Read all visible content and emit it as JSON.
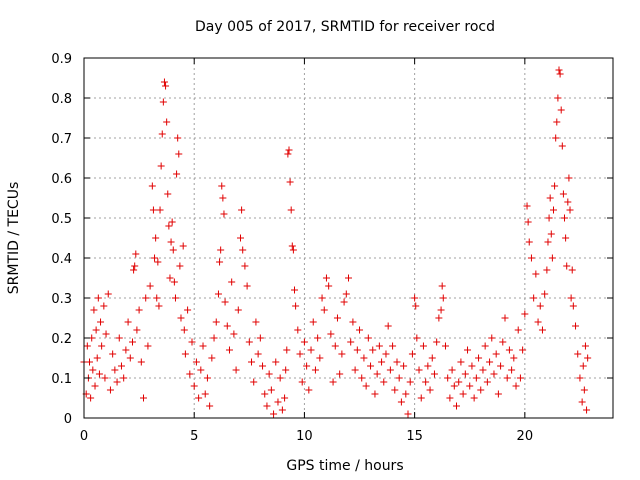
{
  "chart_data": {
    "type": "scatter",
    "title": "Day 005 of 2017, SRMTID for receiver rocd",
    "xlabel": "GPS time / hours",
    "ylabel": "SRMTID / TECUs",
    "xlim": [
      0,
      24
    ],
    "ylim": [
      0,
      0.9
    ],
    "xticks": [
      0,
      5,
      10,
      15,
      20
    ],
    "xtick_labels": [
      "0",
      "5",
      "10",
      "15",
      "20"
    ],
    "yticks": [
      0,
      0.1,
      0.2,
      0.3,
      0.4,
      0.5,
      0.6,
      0.7,
      0.8,
      0.9
    ],
    "ytick_labels": [
      "0",
      "0.1",
      "0.2",
      "0.3",
      "0.4",
      "0.5",
      "0.6",
      "0.7",
      "0.8",
      "0.9"
    ],
    "grid": true,
    "marker": "+",
    "color": "#e00000",
    "series": [
      {
        "name": "SRMTID",
        "points": [
          [
            0.0,
            0.14
          ],
          [
            0.1,
            0.06
          ],
          [
            0.15,
            0.18
          ],
          [
            0.2,
            0.1
          ],
          [
            0.25,
            0.14
          ],
          [
            0.3,
            0.05
          ],
          [
            0.35,
            0.2
          ],
          [
            0.4,
            0.12
          ],
          [
            0.45,
            0.27
          ],
          [
            0.5,
            0.08
          ],
          [
            0.55,
            0.22
          ],
          [
            0.6,
            0.15
          ],
          [
            0.65,
            0.3
          ],
          [
            0.7,
            0.11
          ],
          [
            0.75,
            0.24
          ],
          [
            0.8,
            0.18
          ],
          [
            0.9,
            0.28
          ],
          [
            0.95,
            0.1
          ],
          [
            1.0,
            0.21
          ],
          [
            1.1,
            0.31
          ],
          [
            1.2,
            0.07
          ],
          [
            1.3,
            0.16
          ],
          [
            1.4,
            0.12
          ],
          [
            1.5,
            0.09
          ],
          [
            1.6,
            0.2
          ],
          [
            1.7,
            0.13
          ],
          [
            1.8,
            0.1
          ],
          [
            1.9,
            0.17
          ],
          [
            2.0,
            0.24
          ],
          [
            2.1,
            0.15
          ],
          [
            2.2,
            0.19
          ],
          [
            2.25,
            0.37
          ],
          [
            2.3,
            0.38
          ],
          [
            2.35,
            0.41
          ],
          [
            2.4,
            0.22
          ],
          [
            2.5,
            0.27
          ],
          [
            2.6,
            0.14
          ],
          [
            2.7,
            0.05
          ],
          [
            2.8,
            0.3
          ],
          [
            2.9,
            0.18
          ],
          [
            3.0,
            0.33
          ],
          [
            3.1,
            0.58
          ],
          [
            3.15,
            0.52
          ],
          [
            3.2,
            0.4
          ],
          [
            3.25,
            0.45
          ],
          [
            3.3,
            0.3
          ],
          [
            3.35,
            0.39
          ],
          [
            3.4,
            0.28
          ],
          [
            3.45,
            0.52
          ],
          [
            3.5,
            0.63
          ],
          [
            3.55,
            0.71
          ],
          [
            3.6,
            0.79
          ],
          [
            3.65,
            0.84
          ],
          [
            3.7,
            0.83
          ],
          [
            3.75,
            0.74
          ],
          [
            3.8,
            0.56
          ],
          [
            3.85,
            0.48
          ],
          [
            3.9,
            0.35
          ],
          [
            3.95,
            0.44
          ],
          [
            4.0,
            0.49
          ],
          [
            4.05,
            0.42
          ],
          [
            4.1,
            0.34
          ],
          [
            4.15,
            0.3
          ],
          [
            4.2,
            0.61
          ],
          [
            4.25,
            0.7
          ],
          [
            4.3,
            0.66
          ],
          [
            4.35,
            0.38
          ],
          [
            4.4,
            0.25
          ],
          [
            4.5,
            0.43
          ],
          [
            4.55,
            0.22
          ],
          [
            4.6,
            0.16
          ],
          [
            4.7,
            0.27
          ],
          [
            4.8,
            0.11
          ],
          [
            4.9,
            0.19
          ],
          [
            5.0,
            0.08
          ],
          [
            5.1,
            0.14
          ],
          [
            5.2,
            0.05
          ],
          [
            5.3,
            0.12
          ],
          [
            5.4,
            0.18
          ],
          [
            5.5,
            0.06
          ],
          [
            5.6,
            0.1
          ],
          [
            5.7,
            0.03
          ],
          [
            5.8,
            0.15
          ],
          [
            5.9,
            0.2
          ],
          [
            6.0,
            0.24
          ],
          [
            6.1,
            0.31
          ],
          [
            6.15,
            0.39
          ],
          [
            6.2,
            0.42
          ],
          [
            6.25,
            0.58
          ],
          [
            6.3,
            0.55
          ],
          [
            6.35,
            0.51
          ],
          [
            6.4,
            0.29
          ],
          [
            6.5,
            0.23
          ],
          [
            6.6,
            0.17
          ],
          [
            6.7,
            0.34
          ],
          [
            6.8,
            0.21
          ],
          [
            6.9,
            0.12
          ],
          [
            7.0,
            0.27
          ],
          [
            7.1,
            0.45
          ],
          [
            7.15,
            0.52
          ],
          [
            7.2,
            0.42
          ],
          [
            7.3,
            0.38
          ],
          [
            7.4,
            0.33
          ],
          [
            7.5,
            0.19
          ],
          [
            7.6,
            0.14
          ],
          [
            7.7,
            0.09
          ],
          [
            7.8,
            0.24
          ],
          [
            7.9,
            0.16
          ],
          [
            8.0,
            0.2
          ],
          [
            8.1,
            0.13
          ],
          [
            8.2,
            0.06
          ],
          [
            8.3,
            0.03
          ],
          [
            8.4,
            0.11
          ],
          [
            8.5,
            0.07
          ],
          [
            8.6,
            0.01
          ],
          [
            8.7,
            0.14
          ],
          [
            8.8,
            0.04
          ],
          [
            8.9,
            0.1
          ],
          [
            9.0,
            0.02
          ],
          [
            9.1,
            0.05
          ],
          [
            9.15,
            0.12
          ],
          [
            9.2,
            0.17
          ],
          [
            9.25,
            0.66
          ],
          [
            9.3,
            0.67
          ],
          [
            9.35,
            0.59
          ],
          [
            9.4,
            0.52
          ],
          [
            9.45,
            0.43
          ],
          [
            9.5,
            0.42
          ],
          [
            9.55,
            0.32
          ],
          [
            9.6,
            0.28
          ],
          [
            9.7,
            0.22
          ],
          [
            9.8,
            0.16
          ],
          [
            9.9,
            0.09
          ],
          [
            10.0,
            0.19
          ],
          [
            10.1,
            0.13
          ],
          [
            10.2,
            0.07
          ],
          [
            10.3,
            0.17
          ],
          [
            10.4,
            0.24
          ],
          [
            10.5,
            0.12
          ],
          [
            10.6,
            0.2
          ],
          [
            10.7,
            0.15
          ],
          [
            10.8,
            0.3
          ],
          [
            10.9,
            0.27
          ],
          [
            11.0,
            0.35
          ],
          [
            11.1,
            0.33
          ],
          [
            11.2,
            0.21
          ],
          [
            11.3,
            0.09
          ],
          [
            11.4,
            0.18
          ],
          [
            11.5,
            0.25
          ],
          [
            11.6,
            0.11
          ],
          [
            11.7,
            0.16
          ],
          [
            11.8,
            0.29
          ],
          [
            11.9,
            0.31
          ],
          [
            12.0,
            0.35
          ],
          [
            12.1,
            0.19
          ],
          [
            12.2,
            0.24
          ],
          [
            12.3,
            0.12
          ],
          [
            12.4,
            0.17
          ],
          [
            12.5,
            0.22
          ],
          [
            12.6,
            0.1
          ],
          [
            12.7,
            0.15
          ],
          [
            12.8,
            0.08
          ],
          [
            12.9,
            0.2
          ],
          [
            13.0,
            0.13
          ],
          [
            13.1,
            0.17
          ],
          [
            13.2,
            0.06
          ],
          [
            13.3,
            0.11
          ],
          [
            13.4,
            0.18
          ],
          [
            13.5,
            0.14
          ],
          [
            13.6,
            0.09
          ],
          [
            13.7,
            0.16
          ],
          [
            13.8,
            0.23
          ],
          [
            13.9,
            0.12
          ],
          [
            14.0,
            0.18
          ],
          [
            14.1,
            0.07
          ],
          [
            14.2,
            0.14
          ],
          [
            14.3,
            0.1
          ],
          [
            14.4,
            0.04
          ],
          [
            14.5,
            0.13
          ],
          [
            14.6,
            0.06
          ],
          [
            14.7,
            0.01
          ],
          [
            14.8,
            0.09
          ],
          [
            14.9,
            0.16
          ],
          [
            15.0,
            0.3
          ],
          [
            15.05,
            0.28
          ],
          [
            15.1,
            0.2
          ],
          [
            15.2,
            0.12
          ],
          [
            15.3,
            0.05
          ],
          [
            15.4,
            0.18
          ],
          [
            15.5,
            0.09
          ],
          [
            15.6,
            0.13
          ],
          [
            15.7,
            0.07
          ],
          [
            15.8,
            0.15
          ],
          [
            15.9,
            0.11
          ],
          [
            16.0,
            0.19
          ],
          [
            16.1,
            0.25
          ],
          [
            16.2,
            0.27
          ],
          [
            16.25,
            0.33
          ],
          [
            16.3,
            0.3
          ],
          [
            16.4,
            0.18
          ],
          [
            16.5,
            0.1
          ],
          [
            16.6,
            0.05
          ],
          [
            16.7,
            0.12
          ],
          [
            16.8,
            0.08
          ],
          [
            16.9,
            0.03
          ],
          [
            17.0,
            0.09
          ],
          [
            17.1,
            0.14
          ],
          [
            17.2,
            0.06
          ],
          [
            17.3,
            0.11
          ],
          [
            17.4,
            0.17
          ],
          [
            17.5,
            0.08
          ],
          [
            17.6,
            0.13
          ],
          [
            17.7,
            0.05
          ],
          [
            17.8,
            0.1
          ],
          [
            17.9,
            0.15
          ],
          [
            18.0,
            0.07
          ],
          [
            18.1,
            0.12
          ],
          [
            18.2,
            0.18
          ],
          [
            18.3,
            0.09
          ],
          [
            18.4,
            0.14
          ],
          [
            18.5,
            0.2
          ],
          [
            18.6,
            0.11
          ],
          [
            18.7,
            0.16
          ],
          [
            18.8,
            0.06
          ],
          [
            18.9,
            0.13
          ],
          [
            19.0,
            0.19
          ],
          [
            19.1,
            0.25
          ],
          [
            19.2,
            0.1
          ],
          [
            19.3,
            0.17
          ],
          [
            19.4,
            0.12
          ],
          [
            19.5,
            0.15
          ],
          [
            19.6,
            0.08
          ],
          [
            19.7,
            0.22
          ],
          [
            19.8,
            0.1
          ],
          [
            19.9,
            0.17
          ],
          [
            20.0,
            0.26
          ],
          [
            20.1,
            0.53
          ],
          [
            20.15,
            0.49
          ],
          [
            20.2,
            0.44
          ],
          [
            20.3,
            0.4
          ],
          [
            20.4,
            0.3
          ],
          [
            20.5,
            0.36
          ],
          [
            20.6,
            0.24
          ],
          [
            20.7,
            0.28
          ],
          [
            20.8,
            0.22
          ],
          [
            20.9,
            0.31
          ],
          [
            21.0,
            0.37
          ],
          [
            21.05,
            0.44
          ],
          [
            21.1,
            0.5
          ],
          [
            21.15,
            0.55
          ],
          [
            21.2,
            0.46
          ],
          [
            21.25,
            0.4
          ],
          [
            21.3,
            0.52
          ],
          [
            21.35,
            0.58
          ],
          [
            21.4,
            0.7
          ],
          [
            21.45,
            0.74
          ],
          [
            21.5,
            0.8
          ],
          [
            21.55,
            0.87
          ],
          [
            21.6,
            0.86
          ],
          [
            21.65,
            0.77
          ],
          [
            21.7,
            0.68
          ],
          [
            21.75,
            0.56
          ],
          [
            21.8,
            0.5
          ],
          [
            21.85,
            0.45
          ],
          [
            21.9,
            0.38
          ],
          [
            21.95,
            0.54
          ],
          [
            22.0,
            0.6
          ],
          [
            22.05,
            0.52
          ],
          [
            22.1,
            0.3
          ],
          [
            22.15,
            0.37
          ],
          [
            22.2,
            0.28
          ],
          [
            22.3,
            0.23
          ],
          [
            22.4,
            0.16
          ],
          [
            22.5,
            0.1
          ],
          [
            22.6,
            0.04
          ],
          [
            22.65,
            0.13
          ],
          [
            22.7,
            0.07
          ],
          [
            22.75,
            0.18
          ],
          [
            22.8,
            0.02
          ],
          [
            22.85,
            0.15
          ]
        ]
      }
    ]
  }
}
